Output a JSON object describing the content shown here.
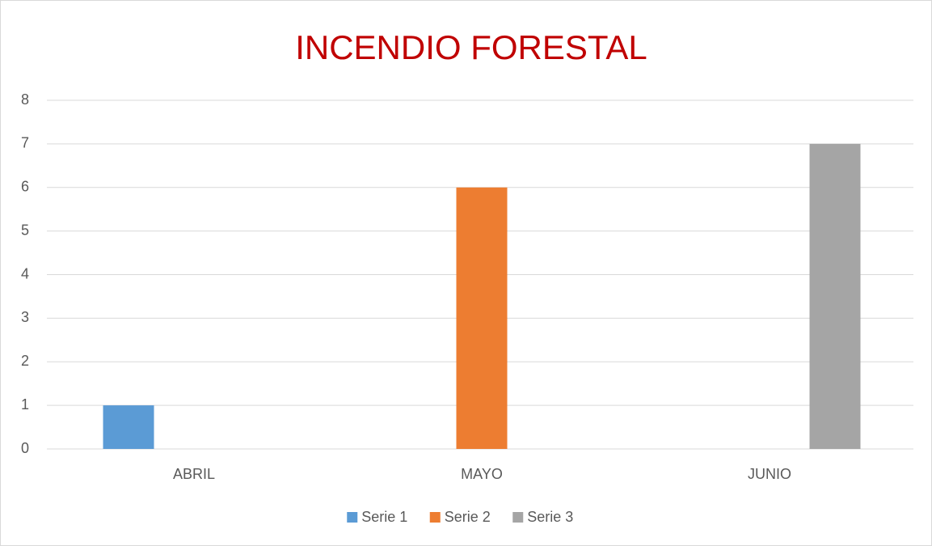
{
  "chart_data": {
    "type": "bar",
    "title": "INCENDIO FORESTAL",
    "categories": [
      "ABRIL",
      "MAYO",
      "JUNIO"
    ],
    "series": [
      {
        "name": "Serie 1",
        "color": "#5b9bd5",
        "values": [
          1,
          null,
          null
        ]
      },
      {
        "name": "Serie 2",
        "color": "#ed7d31",
        "values": [
          null,
          6,
          null
        ]
      },
      {
        "name": "Serie 3",
        "color": "#a5a5a5",
        "values": [
          null,
          null,
          7
        ]
      }
    ],
    "ylim": [
      0,
      8
    ],
    "yticks": [
      0,
      1,
      2,
      3,
      4,
      5,
      6,
      7,
      8
    ],
    "grid": true,
    "legend": "bottom"
  }
}
